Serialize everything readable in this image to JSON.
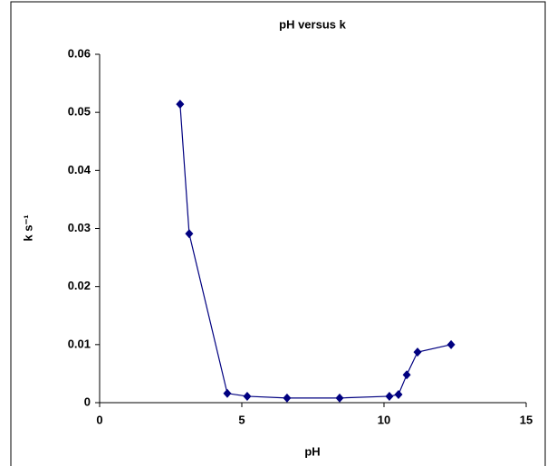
{
  "chart_data": {
    "type": "line",
    "title": "pH versus k",
    "x_label": "pH",
    "y_label": "k s⁻¹",
    "x": [
      2.83,
      3.15,
      4.49,
      5.19,
      6.59,
      8.44,
      10.19,
      10.51,
      10.8,
      11.18,
      12.36
    ],
    "series": [
      {
        "color": "#000080",
        "values": [
          0.0514,
          0.0291,
          0.0016,
          0.0011,
          0.0008,
          0.0008,
          0.0011,
          0.0014,
          0.0048,
          0.0087,
          0.01
        ]
      }
    ],
    "xlim": [
      0,
      15
    ],
    "xticks": [
      0,
      5,
      10,
      15
    ],
    "ylim": [
      0,
      0.06
    ],
    "yticks": [
      0,
      0.01,
      0.02,
      0.03,
      0.04,
      0.05,
      0.06
    ],
    "grid": false
  }
}
